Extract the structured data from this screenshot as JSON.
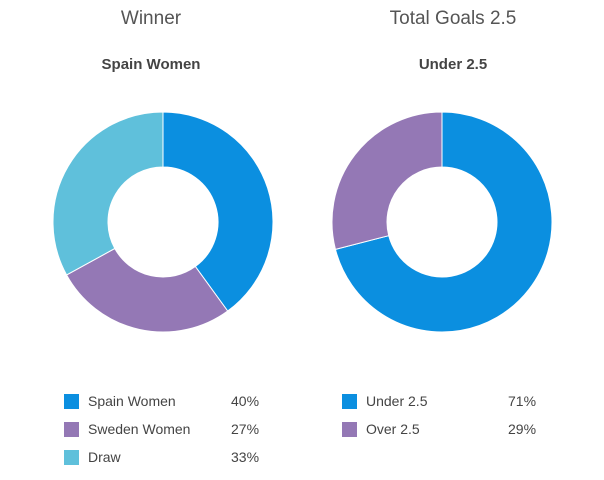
{
  "chart_data": [
    {
      "type": "pie",
      "title": "Winner",
      "subtitle": "Spain Women",
      "slices": [
        {
          "label": "Spain Women",
          "value": 40,
          "display": "40%",
          "color": "#0b8fe0"
        },
        {
          "label": "Sweden Women",
          "value": 27,
          "display": "27%",
          "color": "#9478b5"
        },
        {
          "label": "Draw",
          "value": 33,
          "display": "33%",
          "color": "#5fc0db"
        }
      ],
      "legend_position": "bottom"
    },
    {
      "type": "pie",
      "title": "Total Goals 2.5",
      "subtitle": "Under 2.5",
      "slices": [
        {
          "label": "Under 2.5",
          "value": 71,
          "display": "71%",
          "color": "#0b8fe0"
        },
        {
          "label": "Over 2.5",
          "value": 29,
          "display": "29%",
          "color": "#9478b5"
        }
      ],
      "legend_position": "bottom"
    }
  ]
}
